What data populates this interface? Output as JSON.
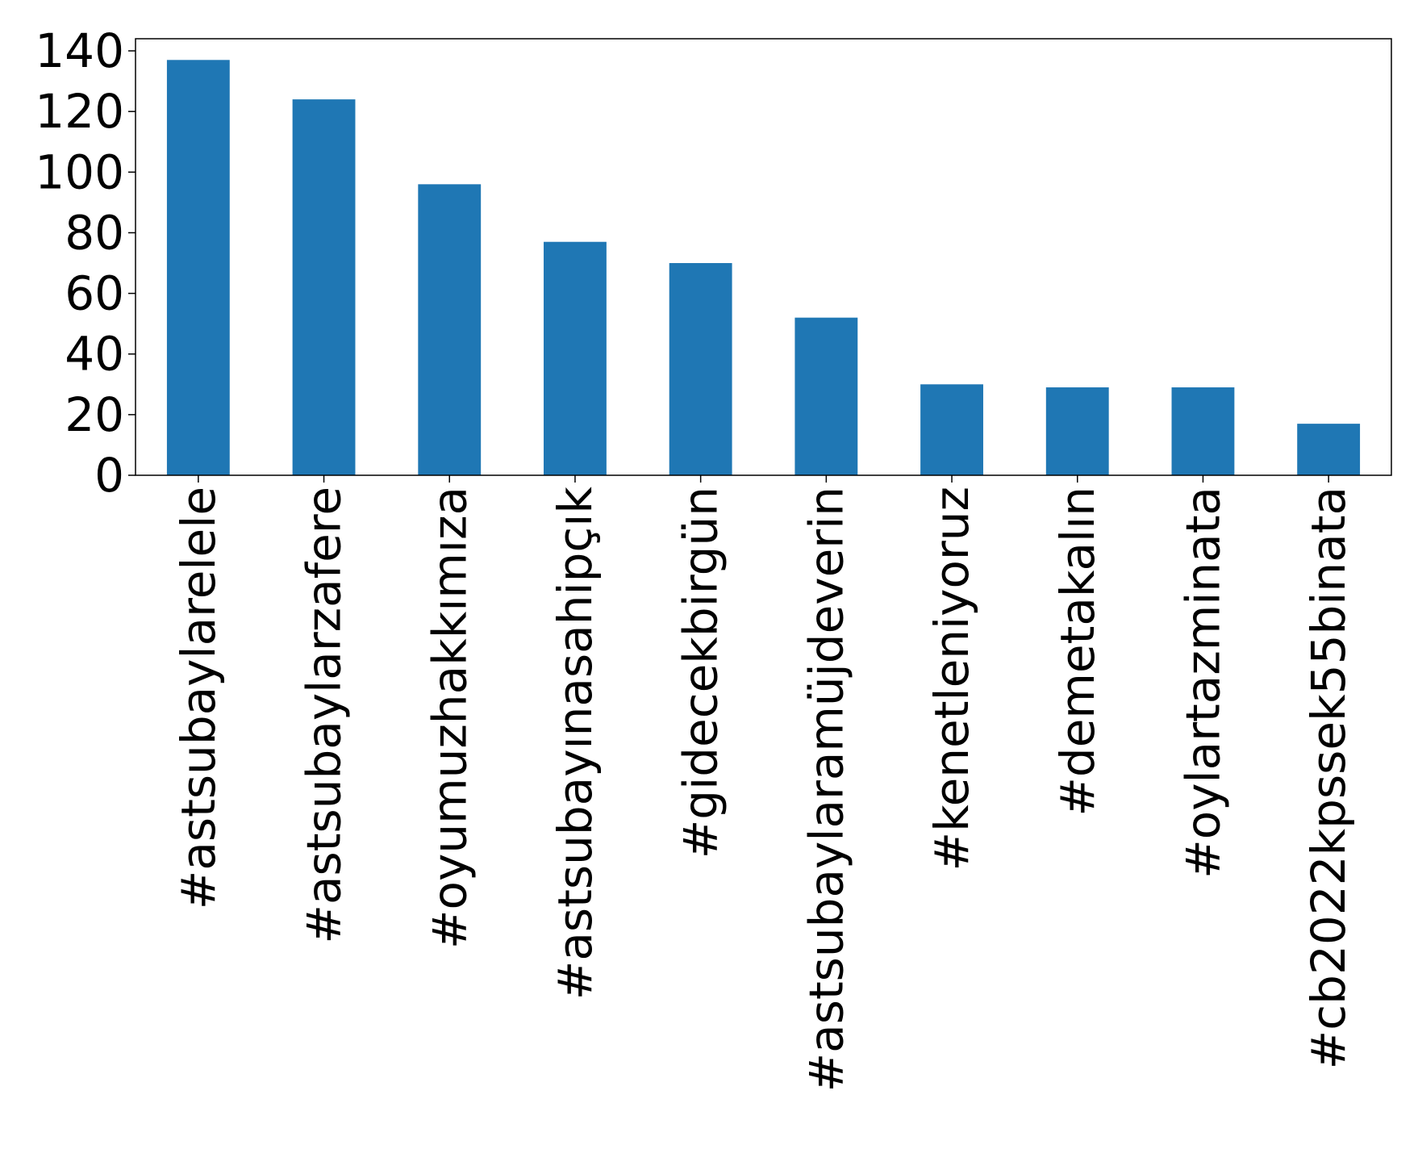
{
  "chart_data": {
    "type": "bar",
    "categories": [
      "#astsubaylarelele",
      "#astsubaylarzafere",
      "#oyumuzhakkımıza",
      "#astsubayınasahipçık",
      "#gidecekbirgün",
      "#astsubaylaramüjdeverin",
      "#kenetleniyoruz",
      "#demetakalın",
      "#oylartazminata",
      "#cb2022kpssek55binata"
    ],
    "values": [
      137,
      124,
      96,
      77,
      70,
      52,
      30,
      29,
      29,
      17
    ],
    "title": "",
    "xlabel": "",
    "ylabel": "",
    "ylim": [
      0,
      144
    ],
    "yticks": [
      0,
      20,
      40,
      60,
      80,
      100,
      120,
      140
    ],
    "bar_color": "#1f77b4",
    "grid": false,
    "legend": "none"
  }
}
